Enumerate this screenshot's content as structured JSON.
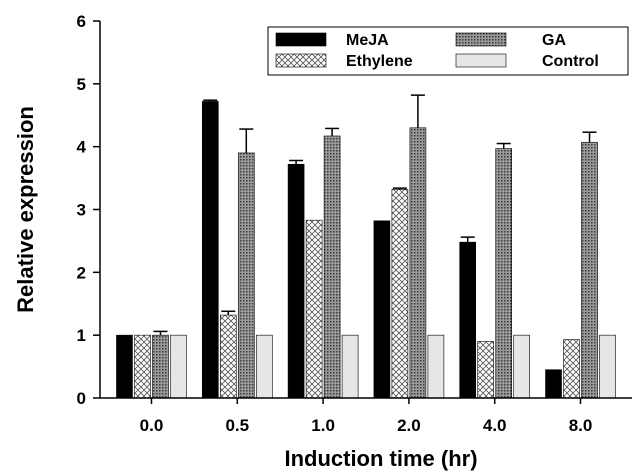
{
  "chart_data": {
    "type": "bar",
    "title": "",
    "xlabel": "Induction time (hr)",
    "ylabel": "Relative expression",
    "categories": [
      "0.0",
      "0.5",
      "1.0",
      "2.0",
      "4.0",
      "8.0"
    ],
    "ylim": [
      0,
      6
    ],
    "yticks": [
      "0",
      "1",
      "2",
      "3",
      "4",
      "5",
      "6"
    ],
    "grid": false,
    "legend_position": "top-right",
    "series": [
      {
        "name": "MeJA",
        "values": [
          1.0,
          4.72,
          3.72,
          2.82,
          2.48,
          0.45
        ],
        "errors": [
          0.0,
          0.02,
          0.06,
          0.0,
          0.08,
          0.0
        ],
        "color": "#000000",
        "pattern": "solid"
      },
      {
        "name": "Ethylene",
        "values": [
          1.0,
          1.32,
          2.83,
          3.32,
          0.9,
          0.93
        ],
        "errors": [
          0.0,
          0.06,
          0.0,
          0.02,
          0.0,
          0.0
        ],
        "color": "#ffffff",
        "pattern": "crosshatch"
      },
      {
        "name": "GA",
        "values": [
          1.0,
          3.9,
          4.17,
          4.3,
          3.97,
          4.07
        ],
        "errors": [
          0.06,
          0.38,
          0.12,
          0.52,
          0.08,
          0.16
        ],
        "color": "#8a8a8a",
        "pattern": "dots"
      },
      {
        "name": "Control",
        "values": [
          1.0,
          1.0,
          1.0,
          1.0,
          1.0,
          1.0
        ],
        "errors": [
          0.0,
          0.0,
          0.0,
          0.0,
          0.0,
          0.0
        ],
        "color": "#e6e6e6",
        "pattern": "solid"
      }
    ]
  }
}
